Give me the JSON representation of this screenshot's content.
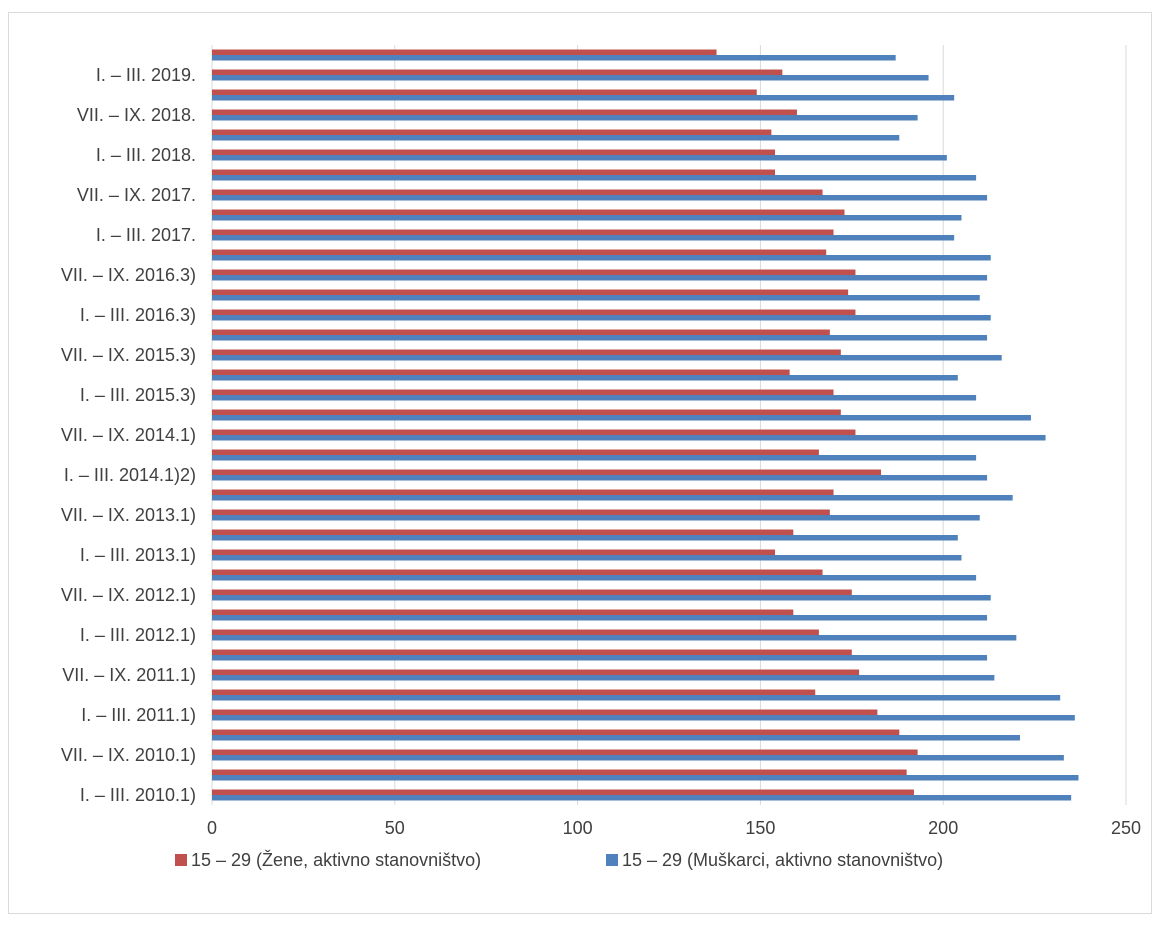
{
  "chart_data": {
    "type": "bar",
    "orientation": "horizontal",
    "title": "",
    "xlabel": "",
    "ylabel": "",
    "xlim": [
      0,
      250
    ],
    "x_ticks": [
      0,
      50,
      100,
      150,
      200,
      250
    ],
    "grid": true,
    "legend_position": "bottom",
    "category_order": "bottom-to-top",
    "categories": [
      "I. – III. 2010.1)",
      "",
      "VII. – IX. 2010.1)",
      "",
      "I. – III. 2011.1)",
      "",
      "VII. – IX. 2011.1)",
      "",
      "I. – III. 2012.1)",
      "",
      "VII. – IX. 2012.1)",
      "",
      "I. – III. 2013.1)",
      "",
      "VII. – IX. 2013.1)",
      "",
      "I. – III. 2014.1)2)",
      "",
      "VII. – IX. 2014.1)",
      "",
      "I. – III. 2015.3)",
      "",
      "VII. – IX. 2015.3)",
      "",
      "I. – III. 2016.3)",
      "",
      "VII. – IX. 2016.3)",
      "",
      "I. – III. 2017.",
      "",
      "VII. – IX. 2017.",
      "",
      "I. – III. 2018.",
      "",
      "VII. – IX. 2018.",
      "",
      "I. – III. 2019.",
      ""
    ],
    "series": [
      {
        "name": "15 – 29 (Žene, aktivno stanovništvo)",
        "color": "#c0504d",
        "values": [
          192,
          190,
          193,
          188,
          182,
          165,
          177,
          175,
          166,
          159,
          175,
          167,
          154,
          159,
          169,
          170,
          183,
          166,
          176,
          172,
          170,
          158,
          172,
          169,
          176,
          174,
          176,
          168,
          170,
          173,
          167,
          154,
          154,
          153,
          160,
          149,
          156,
          138
        ]
      },
      {
        "name": "15 – 29 (Muškarci, aktivno stanovništvo)",
        "color": "#4f81bd",
        "values": [
          235,
          237,
          233,
          221,
          236,
          232,
          214,
          212,
          220,
          212,
          213,
          209,
          205,
          204,
          210,
          219,
          212,
          209,
          228,
          224,
          209,
          204,
          216,
          212,
          213,
          210,
          212,
          213,
          203,
          205,
          212,
          209,
          201,
          188,
          193,
          203,
          196,
          187
        ]
      }
    ]
  }
}
